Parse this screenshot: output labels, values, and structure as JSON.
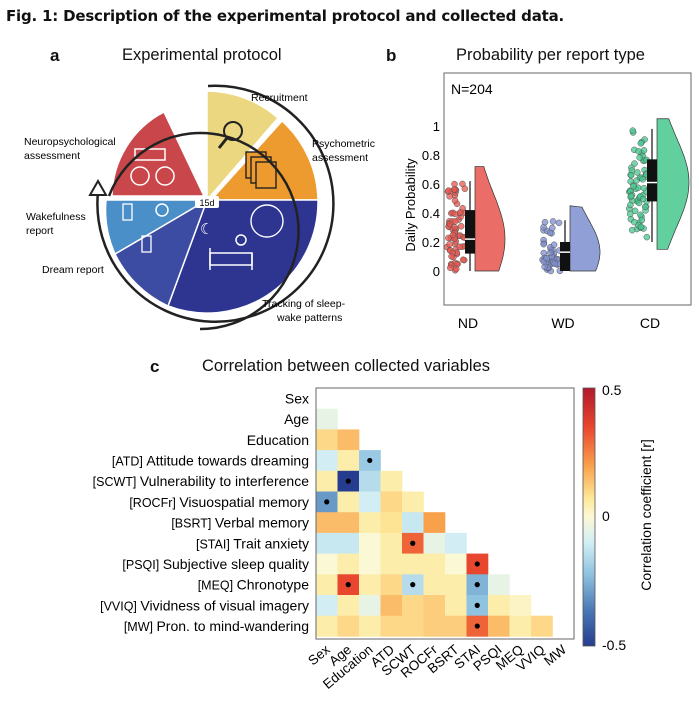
{
  "figure_title": "Fig. 1: Description of the experimental protocol and collected data.",
  "panel_a": {
    "letter": "a",
    "title": "Experimental protocol",
    "center_label": "15d",
    "segments": [
      {
        "label": "Recruitment",
        "color": "#ead77f"
      },
      {
        "label": "Psychometric assessment",
        "color": "#ed9a2e"
      },
      {
        "label": "Tracking of sleep-wake patterns",
        "color": "#2d3590"
      },
      {
        "label": "Dream report",
        "color": "#3c4ea1"
      },
      {
        "label": "Wakefulness report",
        "color": "#4b8fc8"
      },
      {
        "label": "Neuropsychological assessment",
        "color": "#c9474a"
      }
    ],
    "labels": {
      "recruitment": "Recruitment",
      "psychometric_l1": "Psychometric",
      "psychometric_l2": "assessment",
      "neuro_l1": "Neuropsychological",
      "neuro_l2": "assessment",
      "wake_l1": "Wakefulness",
      "wake_l2": "report",
      "dream": "Dream report",
      "tracking_l1": "Tracking of sleep-",
      "tracking_l2": "wake patterns"
    }
  },
  "panel_b": {
    "letter": "b",
    "title": "Probability per report type",
    "annotation": "N=204",
    "chart_data": {
      "type": "raincloud",
      "ylabel": "Daily Probability",
      "yticks": [
        "0",
        "0.2",
        "0.4",
        "0.6",
        "0.8",
        "1"
      ],
      "ylim": [
        0,
        1
      ],
      "categories": [
        "ND",
        "WD",
        "CD"
      ],
      "colors": [
        "#e8544c",
        "#7d8fd0",
        "#45c78d"
      ],
      "box": [
        {
          "q1": 0.12,
          "median": 0.22,
          "q3": 0.42,
          "whisker_low": 0.0,
          "whisker_high": 0.62
        },
        {
          "q1": 0.0,
          "median": 0.13,
          "q3": 0.2,
          "whisker_low": 0.0,
          "whisker_high": 0.35
        },
        {
          "q1": 0.48,
          "median": 0.61,
          "q3": 0.77,
          "whisker_low": 0.2,
          "whisker_high": 0.98
        }
      ]
    }
  },
  "panel_c": {
    "letter": "c",
    "title": "Correlation between collected variables",
    "chart_data": {
      "type": "heatmap",
      "row_labels": [
        {
          "abbr": "",
          "name": "Sex"
        },
        {
          "abbr": "",
          "name": "Age"
        },
        {
          "abbr": "",
          "name": "Education"
        },
        {
          "abbr": "[ATD]",
          "name": "Attitude towards dreaming"
        },
        {
          "abbr": "[SCWT]",
          "name": "Vulnerability to interference"
        },
        {
          "abbr": "[ROCFr]",
          "name": "Visuospatial memory"
        },
        {
          "abbr": "[BSRT]",
          "name": "Verbal memory"
        },
        {
          "abbr": "[STAI]",
          "name": "Trait anxiety"
        },
        {
          "abbr": "[PSQI]",
          "name": "Subjective sleep quality"
        },
        {
          "abbr": "[MEQ]",
          "name": "Chronotype"
        },
        {
          "abbr": "[VVIQ]",
          "name": "Vividness of visual imagery"
        },
        {
          "abbr": "[MW]",
          "name": "Pron. to mind-wandering"
        }
      ],
      "col_labels": [
        "Sex",
        "Age",
        "Education",
        "ATD",
        "SCWT",
        "ROCFr",
        "BSRT",
        "STAI",
        "PSQI",
        "MEQ",
        "VVIQ",
        "MW"
      ],
      "values": [
        [],
        [
          -0.05
        ],
        [
          0.1,
          0.15
        ],
        [
          -0.1,
          0.05,
          -0.2
        ],
        [
          0.05,
          -0.5,
          -0.15,
          0.05
        ],
        [
          -0.3,
          0.05,
          -0.1,
          0.1,
          0.05
        ],
        [
          0.15,
          0.15,
          0.05,
          0.08,
          -0.12,
          0.2
        ],
        [
          -0.12,
          -0.12,
          0.0,
          0.05,
          0.3,
          -0.05,
          -0.1
        ],
        [
          0.0,
          0.05,
          0.0,
          0.05,
          0.05,
          0.05,
          0.0,
          0.35
        ],
        [
          0.05,
          0.35,
          0.05,
          0.1,
          -0.15,
          0.05,
          0.05,
          -0.25,
          -0.05
        ],
        [
          -0.1,
          0.05,
          -0.05,
          0.15,
          0.1,
          0.12,
          0.05,
          -0.22,
          0.05,
          0.02
        ],
        [
          0.05,
          0.1,
          0.05,
          0.1,
          0.1,
          0.12,
          0.12,
          0.3,
          0.15,
          0.05,
          0.1
        ]
      ],
      "significant": [
        [
          3,
          2
        ],
        [
          4,
          1
        ],
        [
          5,
          0
        ],
        [
          7,
          4
        ],
        [
          8,
          7
        ],
        [
          9,
          1
        ],
        [
          9,
          4
        ],
        [
          9,
          7
        ],
        [
          10,
          7
        ],
        [
          11,
          7
        ]
      ],
      "colorbar": {
        "label": "Correlation coefficient [r]",
        "max_label": "0.5",
        "mid_label": "0",
        "min_label": "-0.5",
        "range": [
          -0.5,
          0.5
        ]
      }
    }
  }
}
